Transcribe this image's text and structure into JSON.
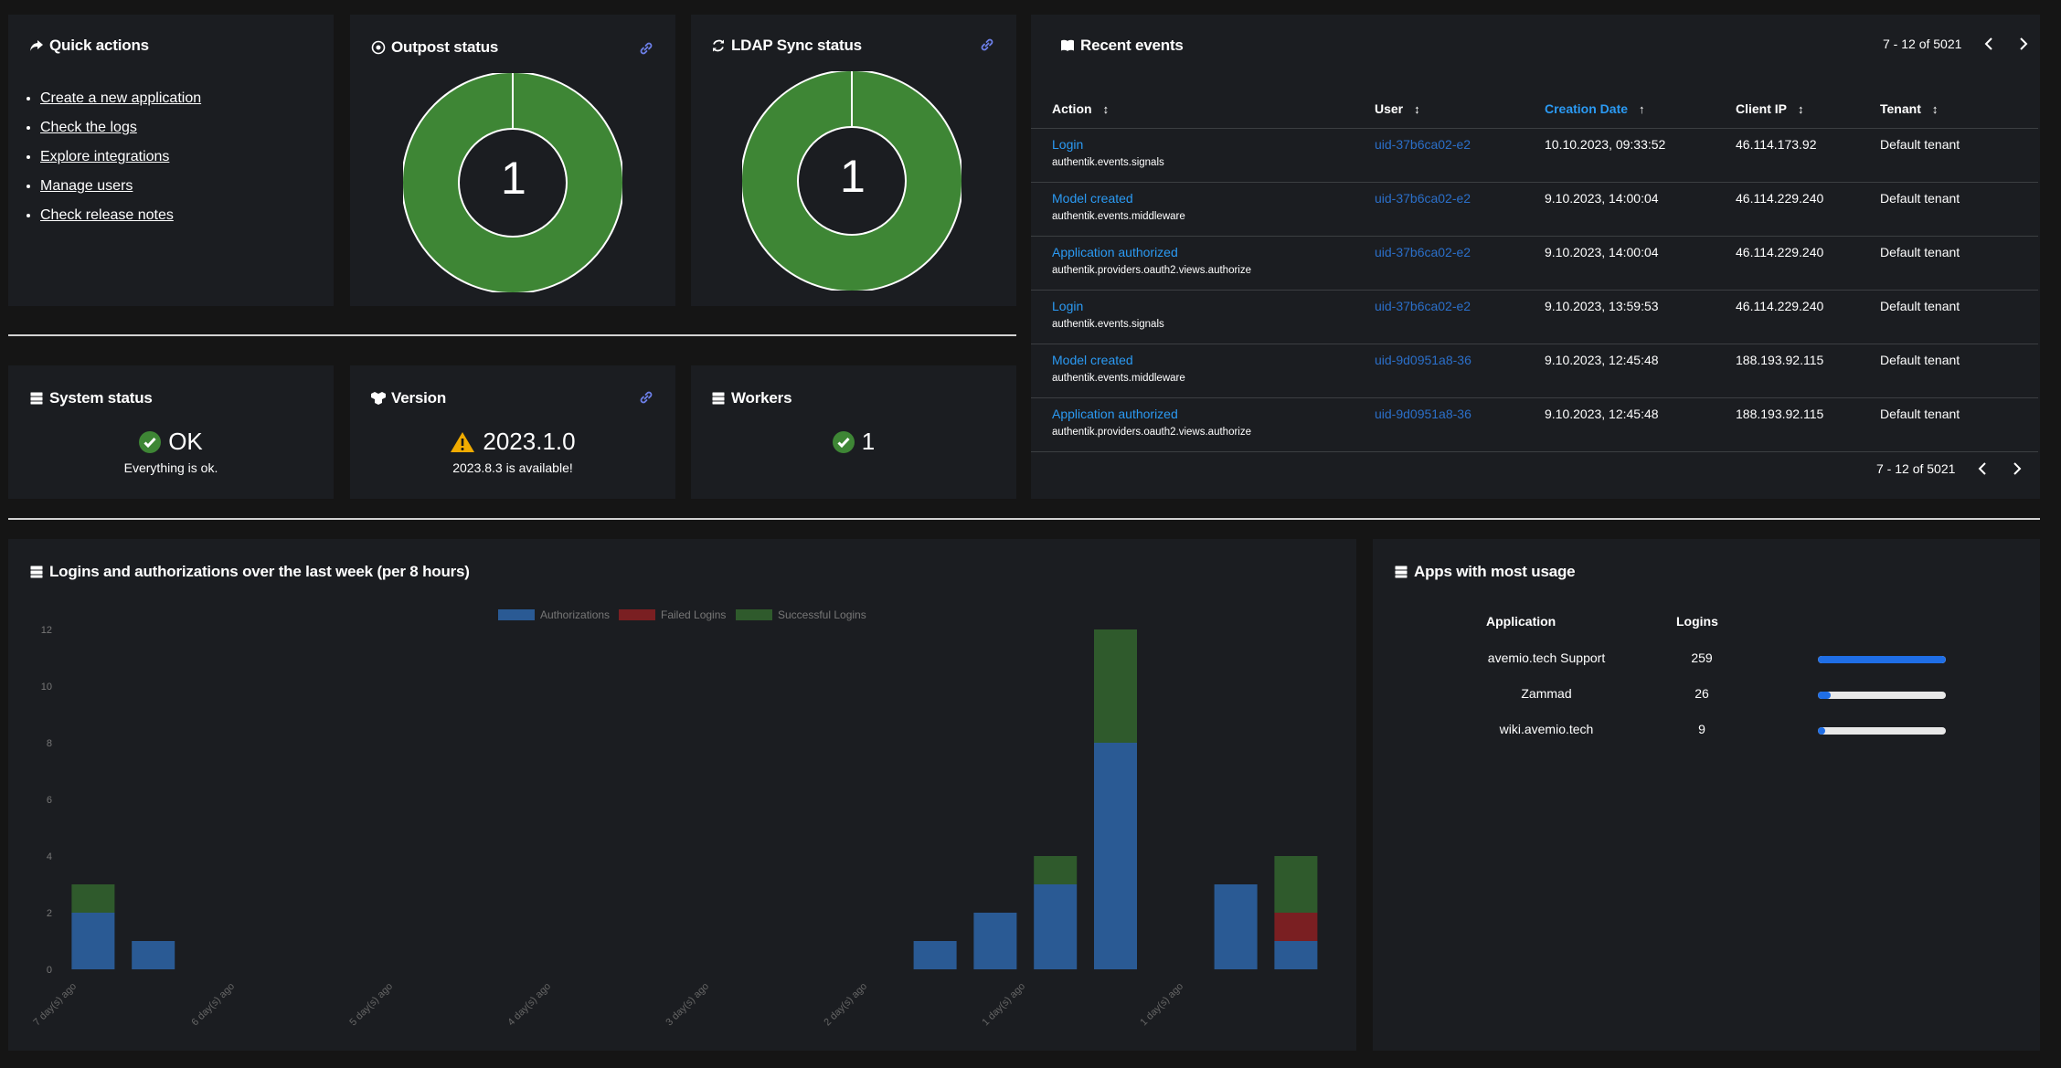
{
  "quick_actions": {
    "title": "Quick actions",
    "items": [
      "Create a new application",
      "Check the logs",
      "Explore integrations",
      "Manage users",
      "Check release notes"
    ]
  },
  "outpost": {
    "title": "Outpost status",
    "value": "1",
    "color": "#3e8635"
  },
  "ldap": {
    "title": "LDAP Sync status",
    "value": "1",
    "color": "#3e8635"
  },
  "system_status": {
    "title": "System status",
    "value": "OK",
    "sub": "Everything is ok."
  },
  "version": {
    "title": "Version",
    "value": "2023.1.0",
    "sub": "2023.8.3 is available!"
  },
  "workers": {
    "title": "Workers",
    "value": "1"
  },
  "events": {
    "title": "Recent events",
    "pager_top": "7 - 12 of 5021",
    "pager_bottom": "7 - 12 of 5021",
    "columns": [
      "Action",
      "User",
      "Creation Date",
      "Client IP",
      "Tenant"
    ],
    "rows": [
      {
        "action": "Login",
        "app": "authentik.events.signals",
        "user": "uid-37b6ca02-e2",
        "date": "10.10.2023, 09:33:52",
        "ip": "46.114.173.92",
        "tenant": "Default tenant"
      },
      {
        "action": "Model created",
        "app": "authentik.events.middleware",
        "user": "uid-37b6ca02-e2",
        "date": "9.10.2023, 14:00:04",
        "ip": "46.114.229.240",
        "tenant": "Default tenant"
      },
      {
        "action": "Application authorized",
        "app": "authentik.providers.oauth2.views.authorize",
        "user": "uid-37b6ca02-e2",
        "date": "9.10.2023, 14:00:04",
        "ip": "46.114.229.240",
        "tenant": "Default tenant"
      },
      {
        "action": "Login",
        "app": "authentik.events.signals",
        "user": "uid-37b6ca02-e2",
        "date": "9.10.2023, 13:59:53",
        "ip": "46.114.229.240",
        "tenant": "Default tenant"
      },
      {
        "action": "Model created",
        "app": "authentik.events.middleware",
        "user": "uid-9d0951a8-36",
        "date": "9.10.2023, 12:45:48",
        "ip": "188.193.92.115",
        "tenant": "Default tenant"
      },
      {
        "action": "Application authorized",
        "app": "authentik.providers.oauth2.views.authorize",
        "user": "uid-9d0951a8-36",
        "date": "9.10.2023, 12:45:48",
        "ip": "188.193.92.115",
        "tenant": "Default tenant"
      }
    ]
  },
  "logins_chart": {
    "title": "Logins and authorizations over the last week (per 8 hours)"
  },
  "chart_data": {
    "type": "bar",
    "stacked": true,
    "legend": [
      "Authorizations",
      "Failed Logins",
      "Successful Logins"
    ],
    "legend_position": "top",
    "colors": [
      "#2a5a94",
      "#7a1f22",
      "#2f5a2c"
    ],
    "x_tick_labels": [
      "7 day(s) ago",
      "6 day(s) ago",
      "5 day(s) ago",
      "4 day(s) ago",
      "3 day(s) ago",
      "2 day(s) ago",
      "1 day(s) ago",
      "1 day(s) ago"
    ],
    "y_ticks": [
      "0",
      "2",
      "4",
      "6",
      "8",
      "10",
      "12"
    ],
    "ylim": [
      0,
      12
    ],
    "slots": 21,
    "bars": [
      {
        "slot": 1,
        "authorizations": 2,
        "failed": 0,
        "successful": 1
      },
      {
        "slot": 2,
        "authorizations": 1,
        "failed": 0,
        "successful": 0
      },
      {
        "slot": 15,
        "authorizations": 1,
        "failed": 0,
        "successful": 0
      },
      {
        "slot": 16,
        "authorizations": 2,
        "failed": 0,
        "successful": 0
      },
      {
        "slot": 17,
        "authorizations": 3,
        "failed": 0,
        "successful": 1
      },
      {
        "slot": 18,
        "authorizations": 8,
        "failed": 0,
        "successful": 4
      },
      {
        "slot": 20,
        "authorizations": 3,
        "failed": 0,
        "successful": 0
      },
      {
        "slot": 21,
        "authorizations": 1,
        "failed": 1,
        "successful": 2
      }
    ]
  },
  "apps": {
    "title": "Apps with most usage",
    "col_app": "Application",
    "col_logins": "Logins",
    "rows": [
      {
        "name": "avemio.tech Support",
        "logins": "259",
        "fraction": 1.0
      },
      {
        "name": "Zammad",
        "logins": "26",
        "fraction": 0.1
      },
      {
        "name": "wiki.avemio.tech",
        "logins": "9",
        "fraction": 0.035
      }
    ]
  }
}
